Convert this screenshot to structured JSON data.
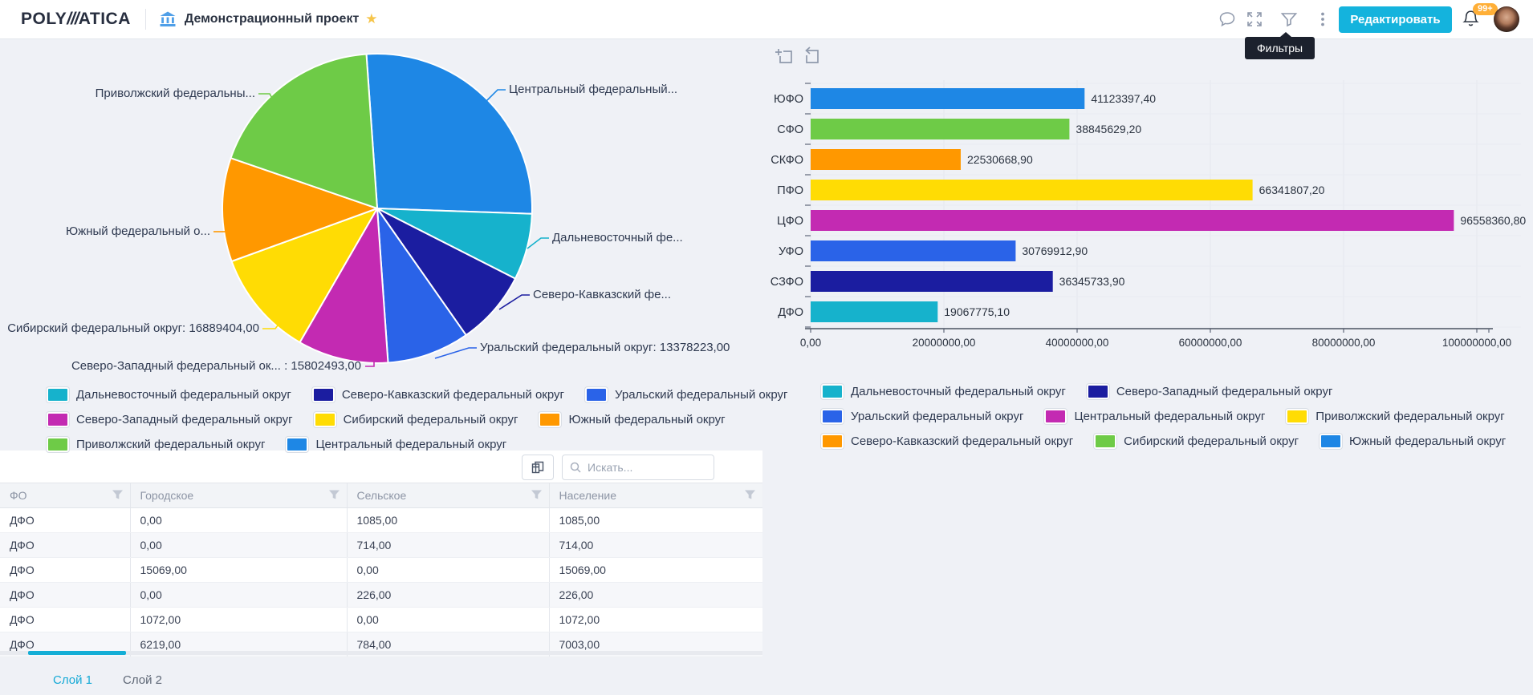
{
  "header": {
    "logo": {
      "poly": "POLY",
      "slashes": "///",
      "atica": "ATICA"
    },
    "project_title": "Демонстрационный проект",
    "star": "★",
    "edit_button": "Редактировать",
    "notifications_badge": "99+",
    "filters_tooltip": "Фильтры",
    "icons": [
      "bank",
      "chat",
      "fullscreen",
      "filter",
      "kebab-menu",
      "bell",
      "avatar"
    ]
  },
  "chart_data": [
    {
      "type": "pie",
      "legend_position": "bottom",
      "slices": [
        {
          "label": "Центральный федеральный округ",
          "color": "#1e87e5",
          "callout": "Центральный федеральный...",
          "est_deg": 96
        },
        {
          "label": "Дальневосточный федеральный округ",
          "color": "#16b2cc",
          "callout": "Дальневосточный фе...",
          "est_deg": 25
        },
        {
          "label": "Северо-Кавказский федеральный округ",
          "color": "#1b1da0",
          "callout": "Северо-Кавказский фе...",
          "est_deg": 28
        },
        {
          "label": "Уральский федеральный округ",
          "color": "#2a63e8",
          "callout": "Уральский федеральный округ: 13378223,00",
          "value": 13378223.0,
          "est_deg": 31
        },
        {
          "label": "Северо-Западный федеральный округ",
          "color": "#c32ab2",
          "callout": "Северо-Западный федеральный ок... : 15802493,00",
          "value": 15802493.0,
          "est_deg": 34
        },
        {
          "label": "Сибирский федеральный округ",
          "color": "#ffdc04",
          "callout": "Сибирский федеральный округ: 16889404,00",
          "value": 16889404.0,
          "est_deg": 40
        },
        {
          "label": "Южный федеральный округ",
          "color": "#ff9800",
          "callout": "Южный федеральный о...",
          "est_deg": 39
        },
        {
          "label": "Приволжский федеральный округ",
          "color": "#6ecb47",
          "callout": "Приволжский федеральны...",
          "est_deg": 67
        }
      ],
      "legend_rows": [
        [
          {
            "label": "Дальневосточный федеральный округ",
            "color": "#16b2cc"
          },
          {
            "label": "Северо-Кавказский федеральный округ",
            "color": "#1b1da0"
          },
          {
            "label": "Уральский федеральный округ",
            "color": "#2a63e8"
          }
        ],
        [
          {
            "label": "Северо-Западный федеральный округ",
            "color": "#c32ab2"
          },
          {
            "label": "Сибирский федеральный округ",
            "color": "#ffdc04"
          },
          {
            "label": "Южный федеральный округ",
            "color": "#ff9800"
          }
        ],
        [
          {
            "label": "Приволжский федеральный округ",
            "color": "#6ecb47"
          },
          {
            "label": "Центральный федеральный округ",
            "color": "#1e87e5"
          }
        ]
      ]
    },
    {
      "type": "bar",
      "orientation": "horizontal",
      "grid": true,
      "categories": [
        "ЮФО",
        "СФО",
        "СКФО",
        "ПФО",
        "ЦФО",
        "УФО",
        "СЗФО",
        "ДФО"
      ],
      "values": [
        41123397.4,
        38845629.2,
        22530668.9,
        66341807.2,
        96558360.8,
        30769912.9,
        36345733.9,
        19067775.1
      ],
      "value_labels": [
        "41123397,40",
        "38845629,20",
        "22530668,90",
        "66341807,20",
        "96558360,80",
        "30769912,90",
        "36345733,90",
        "19067775,10"
      ],
      "bar_colors": [
        "#1e87e5",
        "#6ecb47",
        "#ff9800",
        "#ffdc04",
        "#c32ab2",
        "#2a63e8",
        "#1b1da0",
        "#16b2cc"
      ],
      "x_ticks": [
        "0,00",
        "20000000,00",
        "40000000,00",
        "60000000,00",
        "80000000,00",
        "100000000,00"
      ],
      "xlim": [
        0,
        100000000
      ],
      "legend_rows": [
        [
          {
            "label": "Дальневосточный федеральный округ",
            "color": "#16b2cc"
          },
          {
            "label": "Северо-Западный федеральный округ",
            "color": "#1b1da0"
          }
        ],
        [
          {
            "label": "Уральский федеральный округ",
            "color": "#2a63e8"
          },
          {
            "label": "Центральный федеральный округ",
            "color": "#c32ab2"
          },
          {
            "label": "Приволжский федеральный округ",
            "color": "#ffdc04"
          }
        ],
        [
          {
            "label": "Северо-Кавказский федеральный округ",
            "color": "#ff9800"
          },
          {
            "label": "Сибирский федеральный округ",
            "color": "#6ecb47"
          },
          {
            "label": "Южный федеральный округ",
            "color": "#1e87e5"
          }
        ]
      ]
    }
  ],
  "table": {
    "search_placeholder": "Искать...",
    "columns": [
      "ФО",
      "Городское",
      "Сельское",
      "Население"
    ],
    "rows": [
      [
        "ДФО",
        "0,00",
        "1085,00",
        "1085,00"
      ],
      [
        "ДФО",
        "0,00",
        "714,00",
        "714,00"
      ],
      [
        "ДФО",
        "15069,00",
        "0,00",
        "15069,00"
      ],
      [
        "ДФО",
        "0,00",
        "226,00",
        "226,00"
      ],
      [
        "ДФО",
        "1072,00",
        "0,00",
        "1072,00"
      ],
      [
        "ДФО",
        "6219,00",
        "784,00",
        "7003,00"
      ]
    ]
  },
  "tabs": [
    {
      "label": "Слой 1",
      "active": true
    },
    {
      "label": "Слой 2",
      "active": false
    }
  ]
}
